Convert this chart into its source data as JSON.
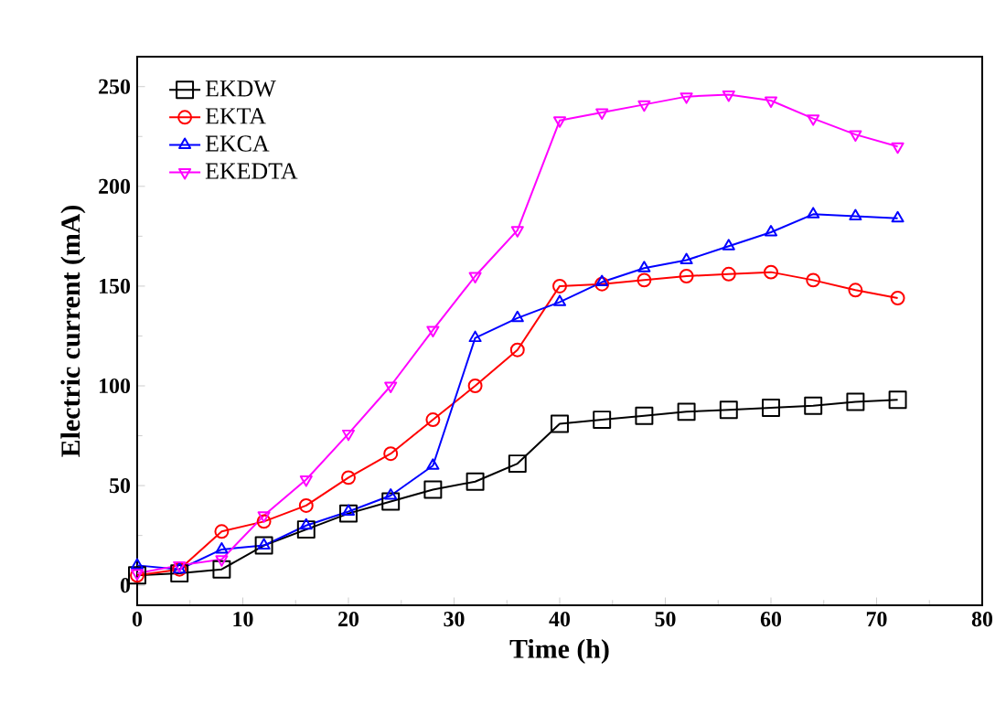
{
  "chart_data": {
    "type": "line",
    "xlabel": "Time (h)",
    "ylabel": "Electric current (mA)",
    "x": [
      0,
      4,
      8,
      12,
      16,
      20,
      24,
      28,
      32,
      36,
      40,
      44,
      48,
      52,
      56,
      60,
      64,
      68,
      72
    ],
    "xlim": [
      0,
      80
    ],
    "xticks": [
      0,
      10,
      20,
      30,
      40,
      50,
      60,
      70,
      80
    ],
    "ylim": [
      -10,
      265
    ],
    "yticks": [
      0,
      50,
      100,
      150,
      200,
      250
    ],
    "legend": "top left",
    "grid": false,
    "series": [
      {
        "name": "EKDW",
        "color": "#000000",
        "marker": "square",
        "values": [
          5,
          6,
          8,
          20,
          28,
          36,
          42,
          48,
          52,
          61,
          81,
          83,
          85,
          87,
          88,
          89,
          90,
          92,
          93
        ]
      },
      {
        "name": "EKTA",
        "color": "#ff0000",
        "marker": "circle",
        "values": [
          5,
          8,
          27,
          32,
          40,
          54,
          66,
          83,
          100,
          118,
          150,
          151,
          153,
          155,
          156,
          157,
          153,
          148,
          144
        ]
      },
      {
        "name": "EKCA",
        "color": "#0000ff",
        "marker": "triangle",
        "values": [
          10,
          8,
          18,
          20,
          30,
          37,
          45,
          60,
          124,
          134,
          142,
          152,
          159,
          163,
          170,
          177,
          186,
          185,
          184
        ]
      },
      {
        "name": "EKEDTA",
        "color": "#ff00ff",
        "marker": "triangle down",
        "values": [
          6,
          10,
          13,
          35,
          53,
          76,
          100,
          128,
          155,
          178,
          233,
          237,
          241,
          245,
          246,
          243,
          234,
          226,
          220
        ]
      }
    ]
  }
}
